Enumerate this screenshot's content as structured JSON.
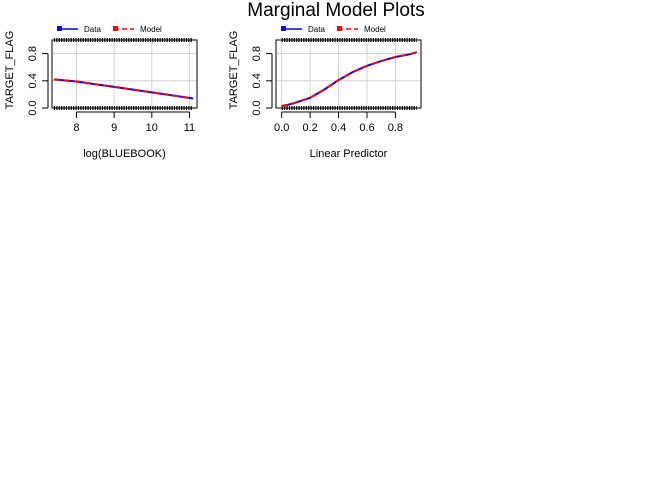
{
  "page": {
    "title": "Marginal Model Plots"
  },
  "colors": {
    "data_line": "#0000ff",
    "model_line": "#ff0000",
    "grid": "#d3d3d3",
    "axes": "#000000",
    "rug": "#000000"
  },
  "legend": {
    "data_label": "Data",
    "model_label": "Model"
  },
  "chart_data": [
    {
      "type": "line",
      "xlabel": "log(BLUEBOOK)",
      "ylabel": "TARGET_FLAG",
      "xlim": [
        7.35,
        11.2
      ],
      "ylim": [
        0,
        1
      ],
      "xticks": [
        "8",
        "9",
        "10",
        "11"
      ],
      "yticks": [
        "0.0",
        "0.4",
        "0.8"
      ],
      "grid": true,
      "legend_position": "top-left",
      "observed_values": [
        0,
        1
      ],
      "observed_x_range": [
        7.4,
        11.1
      ],
      "series": [
        {
          "name": "Data",
          "x": [
            7.4,
            8.0,
            8.5,
            9.0,
            9.5,
            10.0,
            10.5,
            11.1
          ],
          "y": [
            0.42,
            0.39,
            0.35,
            0.31,
            0.27,
            0.23,
            0.19,
            0.14
          ]
        },
        {
          "name": "Model",
          "x": [
            7.4,
            8.0,
            8.5,
            9.0,
            9.5,
            10.0,
            10.5,
            11.1
          ],
          "y": [
            0.42,
            0.39,
            0.35,
            0.31,
            0.27,
            0.23,
            0.19,
            0.14
          ]
        }
      ]
    },
    {
      "type": "line",
      "xlabel": "Linear Predictor",
      "ylabel": "TARGET_FLAG",
      "xlim": [
        -0.04,
        0.98
      ],
      "ylim": [
        0,
        1
      ],
      "xticks": [
        "0.0",
        "0.2",
        "0.4",
        "0.6",
        "0.8"
      ],
      "yticks": [
        "0.0",
        "0.4",
        "0.8"
      ],
      "grid": true,
      "legend_position": "top-left",
      "observed_values": [
        0,
        1
      ],
      "observed_x_range": [
        0.0,
        0.95
      ],
      "series": [
        {
          "name": "Data",
          "x": [
            0.0,
            0.05,
            0.1,
            0.2,
            0.3,
            0.4,
            0.5,
            0.6,
            0.7,
            0.8,
            0.9,
            0.95
          ],
          "y": [
            0.03,
            0.05,
            0.08,
            0.15,
            0.27,
            0.41,
            0.53,
            0.62,
            0.69,
            0.75,
            0.79,
            0.82
          ]
        },
        {
          "name": "Model",
          "x": [
            0.0,
            0.05,
            0.1,
            0.2,
            0.3,
            0.4,
            0.5,
            0.6,
            0.7,
            0.8,
            0.9,
            0.95
          ],
          "y": [
            0.03,
            0.05,
            0.08,
            0.15,
            0.27,
            0.41,
            0.53,
            0.62,
            0.69,
            0.75,
            0.79,
            0.82
          ]
        }
      ]
    }
  ]
}
